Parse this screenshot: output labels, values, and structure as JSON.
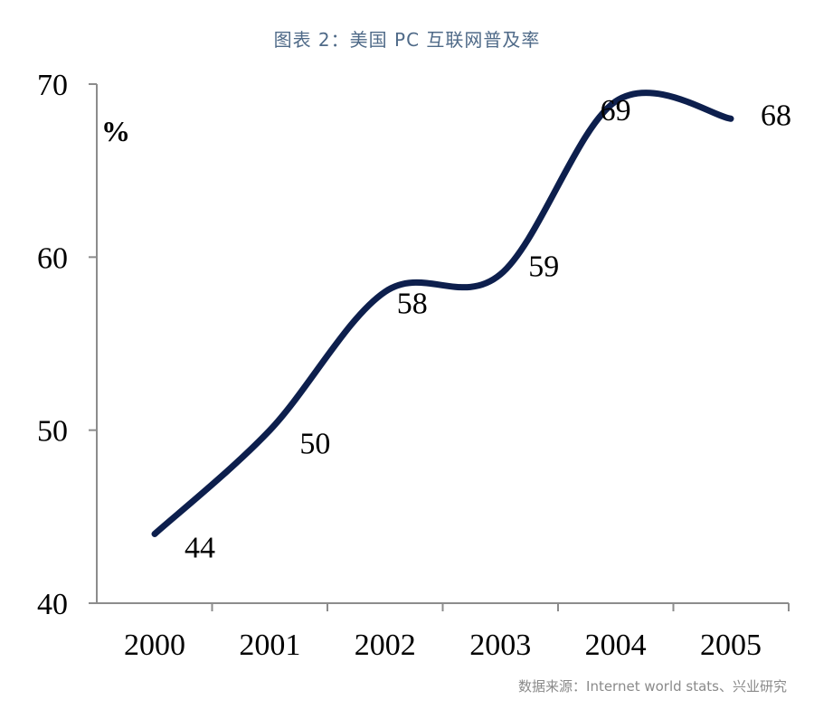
{
  "title": "图表 2：美国 PC 互联网普及率",
  "source": "数据来源：Internet world stats、兴业研究",
  "chart_data": {
    "type": "line",
    "title": "图表 2：美国 PC 互联网普及率",
    "ylabel": "%",
    "xlabel": "",
    "categories": [
      "2000",
      "2001",
      "2002",
      "2003",
      "2004",
      "2005"
    ],
    "values": [
      44,
      50,
      58,
      59,
      69,
      68
    ],
    "data_labels": [
      "44",
      "50",
      "58",
      "59",
      "69",
      "68"
    ],
    "ylim": [
      40,
      70
    ],
    "yticks": [
      "40",
      "50",
      "60",
      "70"
    ],
    "grid": false,
    "legend": "none",
    "smooth": true,
    "line_color": "#0d1f4d"
  }
}
